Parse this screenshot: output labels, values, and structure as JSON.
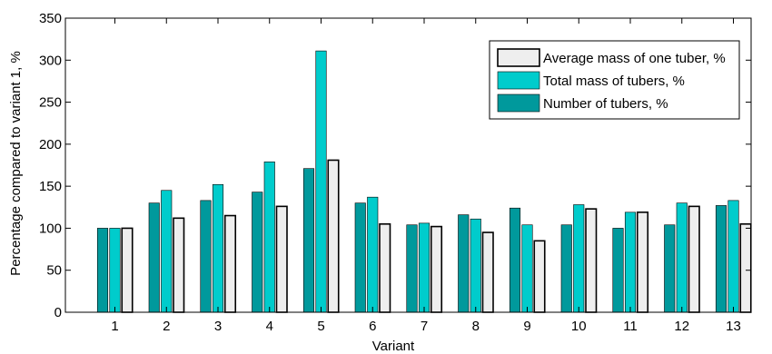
{
  "chart_data": {
    "type": "bar",
    "title": "",
    "xlabel": "Variant",
    "ylabel": "Percentage compared to variant 1, %",
    "categories": [
      "1",
      "2",
      "3",
      "4",
      "5",
      "6",
      "7",
      "8",
      "9",
      "10",
      "11",
      "12",
      "13"
    ],
    "ylim": [
      0,
      350
    ],
    "yticks": [
      0,
      50,
      100,
      150,
      200,
      250,
      300,
      350
    ],
    "grid": false,
    "legend_position": "top-right",
    "legend_order": [
      2,
      1,
      0
    ],
    "series": [
      {
        "name": "Number of tubers, %",
        "color": "#00999c",
        "values": [
          100,
          130,
          133,
          143,
          171,
          130,
          104,
          116,
          124,
          104,
          100,
          104,
          127
        ]
      },
      {
        "name": "Total mass of tubers, %",
        "color": "#00cccc",
        "values": [
          100,
          145,
          152,
          179,
          311,
          137,
          106,
          111,
          104,
          128,
          119,
          130,
          133
        ]
      },
      {
        "name": "Average mass of one tuber, %",
        "color": "#eeeeee",
        "values": [
          100,
          112,
          115,
          126,
          181,
          105,
          102,
          95,
          85,
          123,
          119,
          126,
          105
        ]
      }
    ]
  }
}
